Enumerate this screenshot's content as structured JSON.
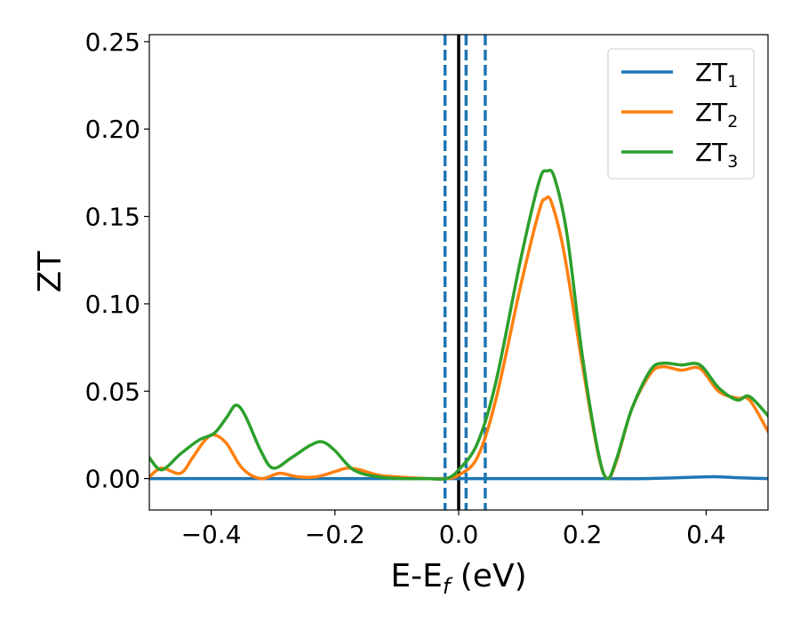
{
  "chart_data": {
    "type": "line",
    "title": "",
    "xlabel": {
      "main": "E-E",
      "sub": "f",
      "rest": " (eV)"
    },
    "ylabel": "ZT",
    "xlim": [
      -0.5,
      0.5
    ],
    "ylim": [
      -0.018,
      0.254
    ],
    "grid": false,
    "legend_position": "top-right",
    "x_ticks": [
      {
        "value": -0.4,
        "label": "−0.4"
      },
      {
        "value": -0.2,
        "label": "−0.2"
      },
      {
        "value": 0.0,
        "label": "0.0"
      },
      {
        "value": 0.2,
        "label": "0.2"
      },
      {
        "value": 0.4,
        "label": "0.4"
      }
    ],
    "y_ticks": [
      {
        "value": 0.0,
        "label": "0.00"
      },
      {
        "value": 0.05,
        "label": "0.05"
      },
      {
        "value": 0.1,
        "label": "0.10"
      },
      {
        "value": 0.15,
        "label": "0.15"
      },
      {
        "value": 0.2,
        "label": "0.20"
      },
      {
        "value": 0.25,
        "label": "0.25"
      }
    ],
    "vertical_lines": [
      {
        "x": -0.022,
        "style": "dashed",
        "color": "#1f77b4"
      },
      {
        "x": 0.012,
        "style": "dashed",
        "color": "#1f77b4"
      },
      {
        "x": 0.043,
        "style": "dashed",
        "color": "#1f77b4"
      },
      {
        "x": 0.0,
        "style": "solid",
        "color": "#000000"
      }
    ],
    "series": [
      {
        "name": "ZT",
        "name_sub": "1",
        "color": "#1f77b4",
        "points": [
          [
            -0.5,
            0.0
          ],
          [
            -0.4,
            0.0
          ],
          [
            -0.3,
            0.0
          ],
          [
            -0.2,
            0.0
          ],
          [
            -0.1,
            0.0
          ],
          [
            0.0,
            0.0
          ],
          [
            0.05,
            0.0
          ],
          [
            0.1,
            0.0
          ],
          [
            0.2,
            0.0
          ],
          [
            0.3,
            0.0
          ],
          [
            0.4,
            0.001
          ],
          [
            0.42,
            0.001
          ],
          [
            0.45,
            0.0005
          ],
          [
            0.5,
            0.0
          ]
        ]
      },
      {
        "name": "ZT",
        "name_sub": "2",
        "color": "#ff7f0e",
        "points": [
          [
            -0.5,
            0.001
          ],
          [
            -0.48,
            0.006
          ],
          [
            -0.45,
            0.003
          ],
          [
            -0.43,
            0.012
          ],
          [
            -0.41,
            0.022
          ],
          [
            -0.395,
            0.025
          ],
          [
            -0.375,
            0.02
          ],
          [
            -0.35,
            0.006
          ],
          [
            -0.32,
            0.0
          ],
          [
            -0.29,
            0.003
          ],
          [
            -0.26,
            0.001
          ],
          [
            -0.23,
            0.001
          ],
          [
            -0.2,
            0.004
          ],
          [
            -0.18,
            0.006
          ],
          [
            -0.16,
            0.005
          ],
          [
            -0.13,
            0.002
          ],
          [
            -0.1,
            0.001
          ],
          [
            -0.05,
            0.0
          ],
          [
            -0.02,
            0.0
          ],
          [
            0.0,
            0.002
          ],
          [
            0.03,
            0.012
          ],
          [
            0.06,
            0.045
          ],
          [
            0.1,
            0.11
          ],
          [
            0.13,
            0.153
          ],
          [
            0.14,
            0.16
          ],
          [
            0.15,
            0.158
          ],
          [
            0.17,
            0.13
          ],
          [
            0.2,
            0.065
          ],
          [
            0.225,
            0.015
          ],
          [
            0.24,
            0.0
          ],
          [
            0.255,
            0.01
          ],
          [
            0.28,
            0.04
          ],
          [
            0.31,
            0.06
          ],
          [
            0.33,
            0.064
          ],
          [
            0.36,
            0.062
          ],
          [
            0.39,
            0.063
          ],
          [
            0.42,
            0.05
          ],
          [
            0.45,
            0.046
          ],
          [
            0.47,
            0.045
          ],
          [
            0.5,
            0.027
          ]
        ]
      },
      {
        "name": "ZT",
        "name_sub": "3",
        "color": "#2ca02c",
        "points": [
          [
            -0.5,
            0.012
          ],
          [
            -0.48,
            0.005
          ],
          [
            -0.45,
            0.014
          ],
          [
            -0.42,
            0.022
          ],
          [
            -0.395,
            0.026
          ],
          [
            -0.375,
            0.035
          ],
          [
            -0.36,
            0.042
          ],
          [
            -0.345,
            0.036
          ],
          [
            -0.32,
            0.016
          ],
          [
            -0.3,
            0.006
          ],
          [
            -0.27,
            0.012
          ],
          [
            -0.24,
            0.019
          ],
          [
            -0.22,
            0.021
          ],
          [
            -0.2,
            0.016
          ],
          [
            -0.17,
            0.005
          ],
          [
            -0.13,
            0.001
          ],
          [
            -0.09,
            0.0
          ],
          [
            -0.05,
            0.0
          ],
          [
            -0.02,
            0.0
          ],
          [
            0.0,
            0.005
          ],
          [
            0.03,
            0.02
          ],
          [
            0.06,
            0.055
          ],
          [
            0.1,
            0.125
          ],
          [
            0.13,
            0.17
          ],
          [
            0.143,
            0.176
          ],
          [
            0.155,
            0.172
          ],
          [
            0.175,
            0.14
          ],
          [
            0.2,
            0.07
          ],
          [
            0.225,
            0.016
          ],
          [
            0.24,
            0.0
          ],
          [
            0.255,
            0.011
          ],
          [
            0.28,
            0.04
          ],
          [
            0.31,
            0.062
          ],
          [
            0.33,
            0.066
          ],
          [
            0.36,
            0.065
          ],
          [
            0.39,
            0.065
          ],
          [
            0.42,
            0.052
          ],
          [
            0.45,
            0.045
          ],
          [
            0.47,
            0.047
          ],
          [
            0.5,
            0.036
          ]
        ]
      }
    ]
  }
}
